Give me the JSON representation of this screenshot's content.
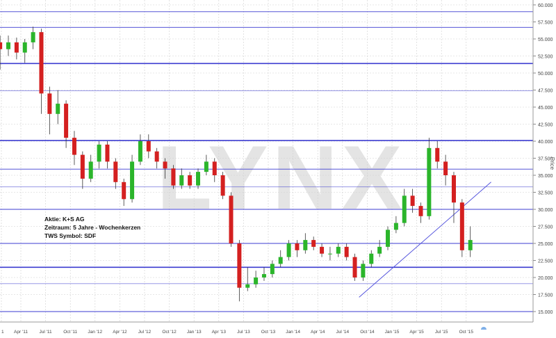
{
  "chart_data": {
    "type": "candlestick",
    "frequency_note": "",
    "ylabel": "Price",
    "ylim": [
      15,
      60
    ],
    "yticks": [
      "60.000",
      "57.500",
      "55.000",
      "52.500",
      "50.000",
      "47.500",
      "45.000",
      "42.500",
      "40.000",
      "37.500",
      "35.000",
      "32.500",
      "30.000",
      "27.500",
      "25.000",
      "22.500",
      "20.000",
      "17.500",
      "15.000"
    ],
    "xticks": [
      "1",
      "Apr '11",
      "Jul '11",
      "Oct '11",
      "Jan '12",
      "Apr '12",
      "Jul '12",
      "Oct '12",
      "Jan '13",
      "Apr '13",
      "Jul '13",
      "Oct '13",
      "Jan '14",
      "Apr '14",
      "Jul '14",
      "Oct '14",
      "Jan '15",
      "Apr '15",
      "Jul '15",
      "Oct '15"
    ],
    "grid": true,
    "horizontal_lines": [
      59.0,
      56.7,
      51.4,
      47.4,
      40.1,
      35.9,
      33.3,
      30.0,
      25.0,
      21.5,
      19.1,
      15.0
    ],
    "trendline": {
      "start": [
        "2014-09",
        17.1
      ],
      "end": [
        "2016-01",
        34.0
      ]
    },
    "ohlc": [
      [
        "2011-01",
        54.6,
        57.8,
        53.5,
        57.0
      ],
      [
        "2011-02",
        57.0,
        58.0,
        54.0,
        54.5
      ],
      [
        "2011-03",
        54.5,
        55.5,
        50.5,
        53.5
      ],
      [
        "2011-04",
        53.5,
        55.5,
        52.5,
        54.5
      ],
      [
        "2011-05",
        54.5,
        55.2,
        52.0,
        53.0
      ],
      [
        "2011-06",
        53.0,
        55.0,
        51.5,
        54.5
      ],
      [
        "2011-07",
        54.5,
        56.8,
        53.5,
        56.0
      ],
      [
        "2011-08",
        56.0,
        56.5,
        44.0,
        47.0
      ],
      [
        "2011-09",
        47.0,
        48.0,
        41.0,
        44.0
      ],
      [
        "2011-10",
        44.0,
        47.5,
        42.5,
        45.5
      ],
      [
        "2011-11",
        45.5,
        46.0,
        39.0,
        40.5
      ],
      [
        "2011-12",
        40.5,
        41.5,
        36.5,
        38.0
      ],
      [
        "2012-01",
        38.0,
        38.5,
        33.0,
        34.5
      ],
      [
        "2012-02",
        34.5,
        38.0,
        34.0,
        37.0
      ],
      [
        "2012-03",
        37.0,
        40.0,
        36.0,
        39.5
      ],
      [
        "2012-04",
        39.5,
        40.0,
        36.0,
        37.0
      ],
      [
        "2012-05",
        37.0,
        37.5,
        33.0,
        34.0
      ],
      [
        "2012-06",
        34.0,
        34.5,
        30.5,
        31.5
      ],
      [
        "2012-07",
        31.5,
        38.0,
        31.0,
        37.0
      ],
      [
        "2012-08",
        37.0,
        41.0,
        36.5,
        40.0
      ],
      [
        "2012-09",
        40.0,
        41.0,
        37.5,
        38.5
      ],
      [
        "2012-10",
        38.5,
        39.0,
        36.0,
        37.0
      ],
      [
        "2012-11",
        37.0,
        37.5,
        34.5,
        36.0
      ],
      [
        "2012-12",
        36.0,
        36.5,
        33.0,
        33.5
      ],
      [
        "2013-01",
        33.5,
        36.0,
        33.0,
        35.0
      ],
      [
        "2013-02",
        35.0,
        35.5,
        33.0,
        33.5
      ],
      [
        "2013-03",
        33.5,
        36.0,
        33.0,
        35.5
      ],
      [
        "2013-04",
        35.5,
        38.0,
        35.0,
        37.0
      ],
      [
        "2013-05",
        37.0,
        37.5,
        34.0,
        35.0
      ],
      [
        "2013-06",
        35.0,
        35.5,
        31.5,
        32.0
      ],
      [
        "2013-07",
        32.0,
        32.5,
        24.5,
        25.0
      ],
      [
        "2013-08",
        25.0,
        25.5,
        16.5,
        18.5
      ],
      [
        "2013-09",
        18.5,
        21.5,
        18.0,
        19.0
      ],
      [
        "2013-10",
        19.0,
        21.0,
        18.5,
        20.0
      ],
      [
        "2013-11",
        20.0,
        21.5,
        19.5,
        20.5
      ],
      [
        "2013-12",
        20.5,
        22.5,
        20.0,
        22.0
      ],
      [
        "2014-01",
        22.0,
        24.0,
        21.5,
        23.0
      ],
      [
        "2014-02",
        23.0,
        25.5,
        22.5,
        25.0
      ],
      [
        "2014-03",
        25.0,
        25.5,
        23.0,
        24.0
      ],
      [
        "2014-04",
        24.0,
        26.5,
        23.5,
        25.5
      ],
      [
        "2014-05",
        25.5,
        26.0,
        24.0,
        24.5
      ],
      [
        "2014-06",
        24.5,
        25.0,
        23.0,
        23.5
      ],
      [
        "2014-07",
        23.5,
        24.5,
        22.5,
        23.5
      ],
      [
        "2014-08",
        23.5,
        25.0,
        23.0,
        24.5
      ],
      [
        "2014-09",
        24.5,
        25.0,
        22.5,
        23.0
      ],
      [
        "2014-10",
        23.0,
        23.5,
        19.5,
        20.0
      ],
      [
        "2014-11",
        20.0,
        22.5,
        19.5,
        22.0
      ],
      [
        "2014-12",
        22.0,
        24.0,
        21.5,
        23.5
      ],
      [
        "2015-01",
        23.5,
        25.5,
        23.0,
        24.5
      ],
      [
        "2015-02",
        24.5,
        27.5,
        24.0,
        27.0
      ],
      [
        "2015-03",
        27.0,
        29.0,
        26.5,
        28.0
      ],
      [
        "2015-04",
        28.0,
        33.0,
        27.5,
        32.0
      ],
      [
        "2015-05",
        32.0,
        33.0,
        29.5,
        30.5
      ],
      [
        "2015-06",
        30.5,
        31.0,
        28.0,
        29.0
      ],
      [
        "2015-07",
        29.0,
        40.5,
        28.5,
        39.0
      ],
      [
        "2015-08",
        39.0,
        40.0,
        36.0,
        37.0
      ],
      [
        "2015-09",
        37.0,
        38.0,
        33.5,
        35.0
      ],
      [
        "2015-10",
        35.0,
        35.5,
        28.0,
        31.0
      ],
      [
        "2015-11",
        31.0,
        31.5,
        23.0,
        24.0
      ],
      [
        "2015-12",
        24.0,
        27.5,
        23.0,
        25.5
      ]
    ]
  },
  "colors": {
    "up": "#2bb52b",
    "down": "#d42020",
    "hline": "#3b3bd0",
    "trend": "#5555dd",
    "grid": "#cfcfcf",
    "watermark": "#e2e2e2"
  },
  "watermark": "LYNX",
  "info": {
    "line1": "Aktie: K+S AG",
    "line2": "Zeitraum: 5 Jahre - Wochenkerzen",
    "line3": "TWS Symbol: SDF"
  }
}
